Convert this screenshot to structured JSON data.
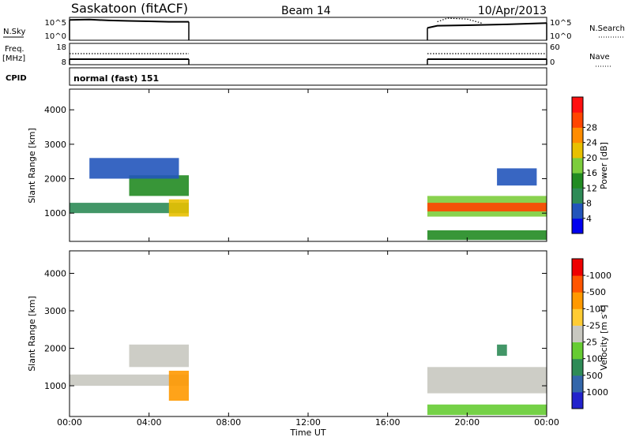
{
  "header": {
    "station": "Saskatoon (fitACF)",
    "beam": "Beam 14",
    "date": "10/Apr/2013"
  },
  "time_axis": {
    "label": "Time UT",
    "ticks": [
      "00:00",
      "04:00",
      "08:00",
      "12:00",
      "16:00",
      "20:00",
      "00:00"
    ],
    "tick_hours": [
      0,
      4,
      8,
      12,
      16,
      20,
      24
    ],
    "range_hours": [
      0,
      24
    ]
  },
  "panels": {
    "nsky": {
      "left_label": "N.Sky",
      "right_label": "N.Search",
      "left_ticks": [
        "10^5",
        "10^0"
      ],
      "right_ticks": [
        "10^5",
        "10^0"
      ]
    },
    "freq": {
      "left_label_1": "Freq.",
      "left_label_2": "[MHz]",
      "right_label": "Nave",
      "left_ticks": [
        "18",
        "8"
      ],
      "right_ticks": [
        "60",
        "0"
      ]
    },
    "cpid": {
      "label": "CPID",
      "text": "normal (fast) 151"
    }
  },
  "chart_data": [
    {
      "type": "line",
      "name": "noise",
      "series": [
        {
          "name": "N.Sky",
          "style": "solid",
          "segments": [
            {
              "x": [
                0.0,
                1.0,
                2.0,
                3.0,
                4.0,
                5.0,
                6.0
              ],
              "y": [
                4.6,
                4.7,
                4.5,
                4.4,
                4.3,
                4.2,
                4.2
              ]
            },
            {
              "x": [
                18.0,
                18.5,
                20.0,
                22.0,
                24.0
              ],
              "y": [
                2.8,
                3.3,
                3.4,
                3.6,
                3.9
              ]
            }
          ]
        },
        {
          "name": "N.Search",
          "style": "dotted",
          "segments": [
            {
              "x": [
                18.5,
                19.0,
                20.0,
                20.8
              ],
              "y": [
                4.2,
                5.0,
                4.8,
                3.8
              ]
            }
          ]
        }
      ],
      "ylim": [
        0,
        5.2
      ]
    },
    {
      "type": "line",
      "name": "frequency-nave",
      "series": [
        {
          "name": "Freq.",
          "style": "solid",
          "segments": [
            {
              "x": [
                0.0,
                6.0
              ],
              "y": [
                10.6,
                10.6
              ]
            },
            {
              "x": [
                18.0,
                24.0
              ],
              "y": [
                10.6,
                10.6
              ]
            }
          ]
        },
        {
          "name": "Nave",
          "style": "dotted",
          "segments": [
            {
              "x": [
                0.0,
                6.0
              ],
              "y": [
                13.2,
                13.2
              ]
            },
            {
              "x": [
                18.0,
                24.0
              ],
              "y": [
                13.2,
                13.2
              ]
            }
          ]
        }
      ],
      "ylim": [
        8,
        18
      ]
    },
    {
      "type": "heatmap",
      "name": "power",
      "ylabel": "Slant Range [km]",
      "yticks": [
        1000,
        2000,
        3000,
        4000
      ],
      "ylim": [
        180,
        4600
      ],
      "xlim": [
        0,
        24
      ],
      "colorbar": {
        "label": "Power [dB]",
        "ticks": [
          "4",
          "8",
          "12",
          "16",
          "20",
          "24",
          "28"
        ],
        "colors": [
          "#0000ee",
          "#2255bb",
          "#2e8b57",
          "#228b22",
          "#7ccd3c",
          "#e8c000",
          "#ff8c00",
          "#ff4500",
          "#ff1010"
        ]
      },
      "regions": [
        {
          "x0": 0.0,
          "x1": 6.0,
          "y0": 1000,
          "y1": 1300,
          "level": 2
        },
        {
          "x0": 3.0,
          "x1": 6.0,
          "y0": 1500,
          "y1": 2100,
          "level": 3
        },
        {
          "x0": 5.0,
          "x1": 6.0,
          "y0": 900,
          "y1": 1400,
          "level": 5
        },
        {
          "x0": 1.0,
          "x1": 5.5,
          "y0": 2000,
          "y1": 2600,
          "level": 1
        },
        {
          "x0": 18.0,
          "x1": 24.0,
          "y0": 900,
          "y1": 1500,
          "level": 4
        },
        {
          "x0": 18.0,
          "x1": 24.0,
          "y0": 1050,
          "y1": 1300,
          "level": 7
        },
        {
          "x0": 18.0,
          "x1": 24.0,
          "y0": 220,
          "y1": 500,
          "level": 3
        },
        {
          "x0": 21.5,
          "x1": 23.5,
          "y0": 1800,
          "y1": 2300,
          "level": 1
        }
      ]
    },
    {
      "type": "heatmap",
      "name": "velocity",
      "ylabel": "Slant Range [km]",
      "yticks": [
        1000,
        2000,
        3000,
        4000
      ],
      "ylim": [
        180,
        4600
      ],
      "xlim": [
        0,
        24
      ],
      "colorbar": {
        "label": "Velocity [m s",
        "label_sup": "-1",
        "label_end": "]",
        "ticks": [
          "1000",
          "500",
          "100",
          "25",
          "-25",
          "-100",
          "-500",
          "-1000"
        ],
        "colors": [
          "#2222cc",
          "#3366aa",
          "#2e8b57",
          "#66cc33",
          "#c8c8c0",
          "#ffcc33",
          "#ff9900",
          "#ff5500",
          "#ee0000"
        ]
      },
      "regions": [
        {
          "x0": 0.0,
          "x1": 6.0,
          "y0": 1000,
          "y1": 1300,
          "level": 4
        },
        {
          "x0": 3.0,
          "x1": 6.0,
          "y0": 1500,
          "y1": 2100,
          "level": 4
        },
        {
          "x0": 5.0,
          "x1": 6.0,
          "y0": 600,
          "y1": 1400,
          "level": 6
        },
        {
          "x0": 18.0,
          "x1": 24.0,
          "y0": 800,
          "y1": 1500,
          "level": 4
        },
        {
          "x0": 21.5,
          "x1": 22.0,
          "y0": 1800,
          "y1": 2100,
          "level": 2
        },
        {
          "x0": 18.0,
          "x1": 24.0,
          "y0": 220,
          "y1": 500,
          "level": 3
        }
      ]
    }
  ]
}
